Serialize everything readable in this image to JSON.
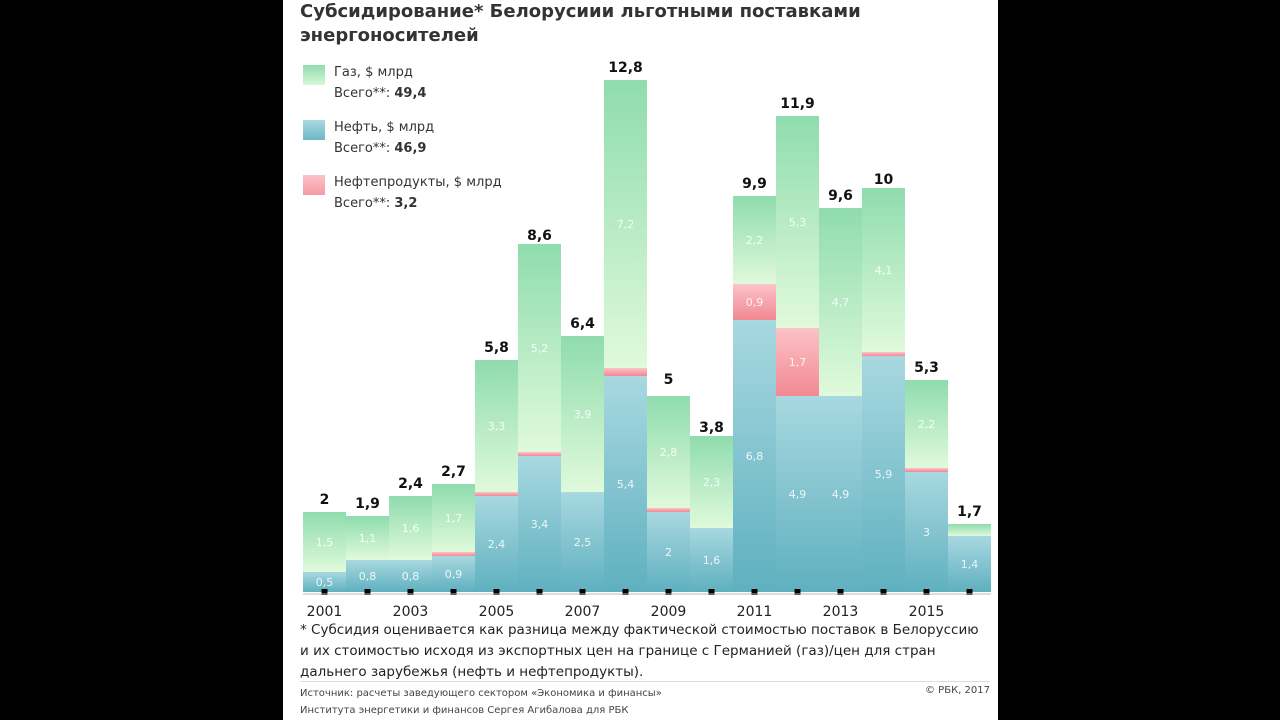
{
  "title": "Субсидирование* Белорусиии льготными поставками энергоносителей",
  "legend": [
    {
      "label": "Газ, $ млрд",
      "total_label": "Всего**:",
      "total": "49,4",
      "color": "#8fdcae"
    },
    {
      "label": "Нефть, $ млрд",
      "total_label": "Всего**:",
      "total": "46,9",
      "color": "#6db8c6"
    },
    {
      "label": "Нефтепродукты, $ млрд",
      "total_label": "Всего**:",
      "total": "3,2",
      "color": "#f59aa3"
    }
  ],
  "chart_data": {
    "type": "bar",
    "stacked": true,
    "categories": [
      "2001",
      "2002",
      "2003",
      "2004",
      "2005",
      "2006",
      "2007",
      "2008",
      "2009",
      "2010",
      "2011",
      "2012",
      "2013",
      "2014",
      "2015",
      "2016"
    ],
    "x_tick_labels": [
      "2001",
      "2003",
      "2005",
      "2007",
      "2009",
      "2011",
      "2013",
      "2015"
    ],
    "series": [
      {
        "name": "Нефть",
        "values": [
          0.5,
          0.8,
          0.8,
          0.9,
          2.4,
          3.4,
          2.5,
          5.4,
          2,
          1.6,
          6.8,
          4.9,
          4.9,
          5.9,
          3,
          1.4
        ],
        "labels": [
          "0,5",
          "0,8",
          "0,8",
          "0,9",
          "2,4",
          "3,4",
          "2,5",
          "5,4",
          "2",
          "1,6",
          "6,8",
          "4,9",
          "4,9",
          "5,9",
          "3",
          "1,4"
        ]
      },
      {
        "name": "Нефтепродукты",
        "values": [
          0,
          0,
          0,
          0.1,
          0.1,
          0.1,
          0,
          0.2,
          0.1,
          0,
          0.9,
          1.7,
          0,
          0.1,
          0.1,
          0
        ],
        "labels": [
          "",
          "",
          "",
          "",
          "",
          "",
          "",
          "",
          "",
          "",
          "0,9",
          "1,7",
          "",
          "",
          "",
          ""
        ]
      },
      {
        "name": "Газ",
        "values": [
          1.5,
          1.1,
          1.6,
          1.7,
          3.3,
          5.2,
          3.9,
          7.2,
          2.8,
          2.3,
          2.2,
          5.3,
          4.7,
          4.1,
          2.2,
          0.3
        ],
        "labels": [
          "1,5",
          "1,1",
          "1,6",
          "1,7",
          "3,3",
          "5,2",
          "3,9",
          "7,2",
          "2,8",
          "2,3",
          "2,2",
          "5,3",
          "4,7",
          "4,1",
          "2,2",
          ""
        ]
      }
    ],
    "totals": [
      "2",
      "1,9",
      "2,4",
      "2,7",
      "5,8",
      "8,6",
      "6,4",
      "12,8",
      "5",
      "3,8",
      "9,9",
      "11,9",
      "9,6",
      "10",
      "5,3",
      "1,7"
    ],
    "totals_values": [
      2,
      1.9,
      2.4,
      2.7,
      5.8,
      8.6,
      6.4,
      12.8,
      5,
      3.8,
      9.9,
      11.9,
      9.6,
      10,
      5.3,
      1.7
    ],
    "ylim": [
      0,
      12.8
    ]
  },
  "footnote": "* Субсидия оценивается как разница между фактической стоимостью поставок в Белоруссию и их стоимостью исходя из экспортных цен на границе с Германией (газ)/цен для стран дальнего зарубежья (нефть и нефтепродукты).",
  "source": [
    "Источник: расчеты заведующего сектором «Экономика и финансы»",
    "Института энергетики и финансов Сергея Агибалова для РБК"
  ],
  "copyright": "© РБК, 2017"
}
